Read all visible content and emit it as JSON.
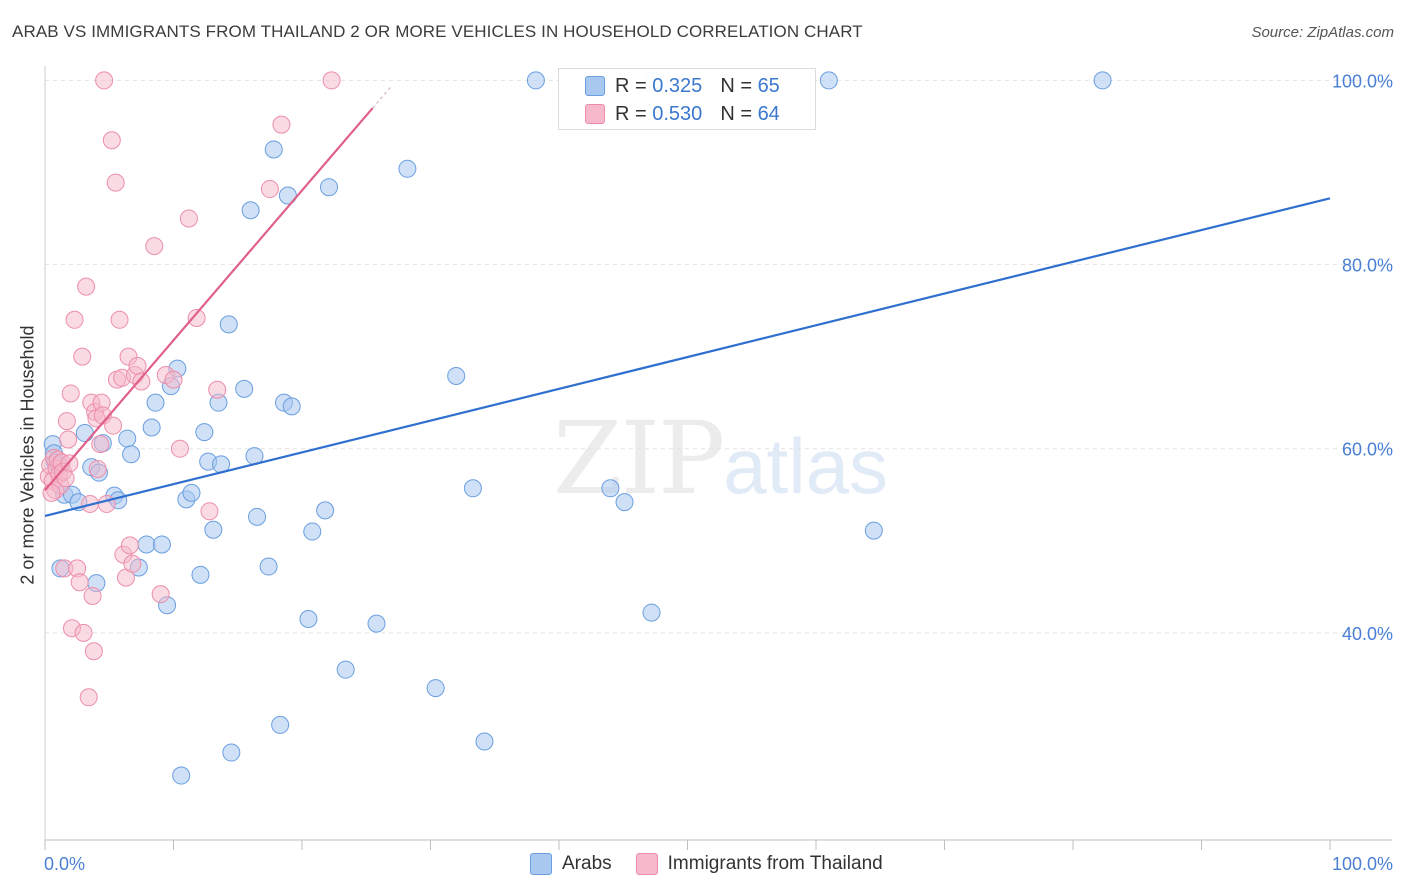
{
  "title": "ARAB VS IMMIGRANTS FROM THAILAND 2 OR MORE VEHICLES IN HOUSEHOLD CORRELATION CHART",
  "source": "Source: ZipAtlas.com",
  "watermark": {
    "zip": "ZIP",
    "atlas": "atlas"
  },
  "legend_top": {
    "rows": [
      {
        "r_label": "R =",
        "r_value": "0.325",
        "n_label": "N =",
        "n_value": "65"
      },
      {
        "r_label": "R =",
        "r_value": "0.530",
        "n_label": "N =",
        "n_value": "64"
      }
    ]
  },
  "bottom_legend": [
    "Arabs",
    "Immigrants from Thailand"
  ],
  "colors": {
    "arabs_fill": "#a9c8f0",
    "arabs_stroke": "#6a9fe0",
    "arabs_line": "#2f6fd0",
    "thai_fill": "#f6b8ca",
    "thai_stroke": "#ec8eaa",
    "thai_line": "#e0608a",
    "tick_label": "#4a7fd4",
    "grid": "#e4e4e4"
  },
  "chart_data": {
    "type": "scatter",
    "title": "ARAB VS IMMIGRANTS FROM THAILAND 2 OR MORE VEHICLES IN HOUSEHOLD CORRELATION CHART",
    "xlabel": "",
    "ylabel": "2 or more Vehicles in Household",
    "xlim": [
      0,
      100
    ],
    "ylim": [
      17.5,
      102
    ],
    "x_tick_labels": [
      "0.0%",
      "100.0%"
    ],
    "y_ticks": [
      40,
      60,
      80,
      100
    ],
    "y_tick_labels": [
      "40.0%",
      "60.0%",
      "80.0%",
      "100.0%"
    ],
    "grid": true,
    "legend_position": "top-center",
    "series": [
      {
        "name": "Arabs",
        "r": 0.325,
        "n": 65,
        "trend": {
          "x": [
            0,
            100
          ],
          "y": [
            52.7,
            87.2
          ]
        },
        "points": [
          [
            0.6,
            60.5
          ],
          [
            0.7,
            59.5
          ],
          [
            0.8,
            58.5
          ],
          [
            1.1,
            58.2
          ],
          [
            1.5,
            55.0
          ],
          [
            1.2,
            47.0
          ],
          [
            2.1,
            55.0
          ],
          [
            2.6,
            54.2
          ],
          [
            3.1,
            61.7
          ],
          [
            3.6,
            58.0
          ],
          [
            4.2,
            57.4
          ],
          [
            4.0,
            45.4
          ],
          [
            4.5,
            60.6
          ],
          [
            5.4,
            54.9
          ],
          [
            5.7,
            54.4
          ],
          [
            6.4,
            61.1
          ],
          [
            6.7,
            59.4
          ],
          [
            7.3,
            47.1
          ],
          [
            7.9,
            49.6
          ],
          [
            8.3,
            62.3
          ],
          [
            8.6,
            65.0
          ],
          [
            9.1,
            49.6
          ],
          [
            9.5,
            43.0
          ],
          [
            9.8,
            66.8
          ],
          [
            10.3,
            68.7
          ],
          [
            10.6,
            24.5
          ],
          [
            11.0,
            54.5
          ],
          [
            11.4,
            55.2
          ],
          [
            12.1,
            46.3
          ],
          [
            12.4,
            61.8
          ],
          [
            12.7,
            58.6
          ],
          [
            13.1,
            51.2
          ],
          [
            13.5,
            65.0
          ],
          [
            13.7,
            58.3
          ],
          [
            14.3,
            73.5
          ],
          [
            14.5,
            27.0
          ],
          [
            15.5,
            66.5
          ],
          [
            16.0,
            85.9
          ],
          [
            16.3,
            59.2
          ],
          [
            16.5,
            52.6
          ],
          [
            17.4,
            47.2
          ],
          [
            17.8,
            92.5
          ],
          [
            18.3,
            30.0
          ],
          [
            18.6,
            65.0
          ],
          [
            18.9,
            87.5
          ],
          [
            19.2,
            64.6
          ],
          [
            20.5,
            41.5
          ],
          [
            20.8,
            51.0
          ],
          [
            21.8,
            53.3
          ],
          [
            22.1,
            88.4
          ],
          [
            23.4,
            36.0
          ],
          [
            25.8,
            41.0
          ],
          [
            28.2,
            90.4
          ],
          [
            30.4,
            34.0
          ],
          [
            32.0,
            67.9
          ],
          [
            33.3,
            55.7
          ],
          [
            34.2,
            28.2
          ],
          [
            38.2,
            100.0
          ],
          [
            44.0,
            55.7
          ],
          [
            45.1,
            54.2
          ],
          [
            47.2,
            42.2
          ],
          [
            47.4,
            100.0
          ],
          [
            61.0,
            100.0
          ],
          [
            64.5,
            51.1
          ],
          [
            82.3,
            100.0
          ]
        ]
      },
      {
        "name": "Immigrants from Thailand",
        "r": 0.53,
        "n": 64,
        "trend": {
          "x": [
            0,
            25.5
          ],
          "y": [
            55.5,
            97.0
          ]
        },
        "points": [
          [
            0.3,
            57.0
          ],
          [
            0.4,
            58.2
          ],
          [
            0.6,
            56.5
          ],
          [
            0.7,
            59.0
          ],
          [
            0.8,
            55.5
          ],
          [
            0.9,
            57.8
          ],
          [
            1.0,
            58.8
          ],
          [
            1.1,
            57.2
          ],
          [
            1.2,
            56.0
          ],
          [
            1.3,
            58.5
          ],
          [
            1.4,
            57.5
          ],
          [
            1.5,
            47.0
          ],
          [
            1.7,
            63.0
          ],
          [
            1.8,
            61.0
          ],
          [
            1.9,
            58.4
          ],
          [
            2.0,
            66.0
          ],
          [
            2.1,
            40.5
          ],
          [
            2.3,
            74.0
          ],
          [
            2.5,
            47.0
          ],
          [
            2.7,
            45.5
          ],
          [
            2.9,
            70.0
          ],
          [
            3.0,
            40.0
          ],
          [
            3.2,
            77.6
          ],
          [
            3.4,
            33.0
          ],
          [
            3.5,
            54.0
          ],
          [
            3.6,
            65.0
          ],
          [
            3.7,
            44.0
          ],
          [
            3.8,
            38.0
          ],
          [
            3.9,
            64.0
          ],
          [
            4.0,
            63.3
          ],
          [
            4.1,
            57.8
          ],
          [
            4.3,
            60.5
          ],
          [
            4.4,
            65.0
          ],
          [
            4.5,
            63.6
          ],
          [
            4.6,
            100.0
          ],
          [
            4.8,
            54.0
          ],
          [
            5.2,
            93.5
          ],
          [
            5.3,
            62.5
          ],
          [
            5.5,
            88.9
          ],
          [
            5.6,
            67.5
          ],
          [
            5.8,
            74.0
          ],
          [
            6.0,
            67.7
          ],
          [
            6.1,
            48.5
          ],
          [
            6.3,
            46.0
          ],
          [
            6.5,
            70.0
          ],
          [
            6.6,
            49.5
          ],
          [
            6.8,
            47.5
          ],
          [
            7.0,
            68.0
          ],
          [
            7.2,
            69.0
          ],
          [
            7.5,
            67.3
          ],
          [
            8.5,
            82.0
          ],
          [
            9.0,
            44.2
          ],
          [
            9.4,
            68.0
          ],
          [
            10.0,
            67.5
          ],
          [
            10.5,
            60.0
          ],
          [
            11.2,
            85.0
          ],
          [
            11.8,
            74.2
          ],
          [
            12.8,
            53.2
          ],
          [
            13.4,
            66.4
          ],
          [
            17.5,
            88.2
          ],
          [
            18.4,
            95.2
          ],
          [
            22.3,
            100.0
          ],
          [
            0.5,
            55.2
          ],
          [
            1.6,
            56.8
          ]
        ]
      }
    ]
  }
}
